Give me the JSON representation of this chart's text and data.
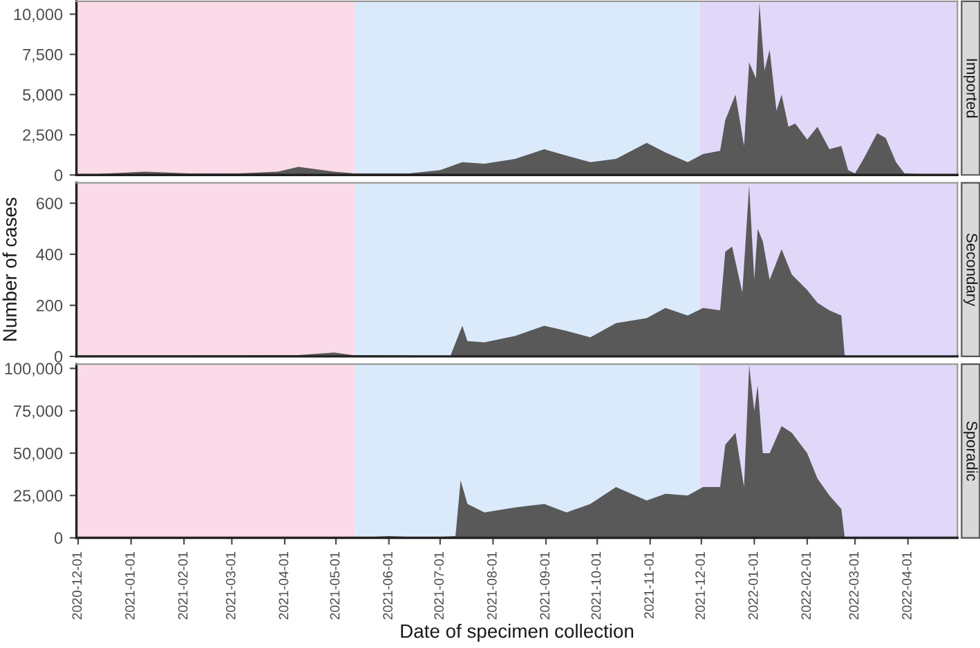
{
  "chart_data": [
    {
      "type": "area",
      "title": "Imported",
      "xlim": [
        "2020-11-30",
        "2022-04-30"
      ],
      "ylim": [
        0,
        10800
      ],
      "yticks": [
        0,
        {
          "value": 2500,
          "label": "2,500"
        },
        {
          "value": 5000,
          "label": "5,000"
        },
        {
          "value": 7500,
          "label": "7,500"
        },
        {
          "value": 10000,
          "label": "10,000"
        }
      ],
      "xticks": [
        "2020-12-01",
        "2021-01-01",
        "2021-02-01",
        "2021-03-01",
        "2021-04-01",
        "2021-05-01",
        "2021-06-01",
        "2021-07-01",
        "2021-08-01",
        "2021-09-01",
        "2021-10-01",
        "2021-11-01",
        "2021-12-01",
        "2022-01-01",
        "2022-02-01",
        "2022-03-01",
        "2022-04-01"
      ],
      "tick_labels": "y",
      "bands": [
        {
          "axis": "x",
          "from": "2020-11-30",
          "to": "2021-05-12",
          "color": "#fcdbe8"
        },
        {
          "axis": "x",
          "from": "2021-05-12",
          "to": "2021-11-30",
          "color": "#dbeafb"
        },
        {
          "axis": "x",
          "from": "2021-11-30",
          "to": "2022-04-30",
          "color": "#e1d8f9"
        }
      ],
      "series": [
        {
          "color": "#595959",
          "x": [
            "2020-12-01",
            "2021-01-09",
            "2021-02-04",
            "2021-03-05",
            "2021-03-28",
            "2021-04-09",
            "2021-04-30",
            "2021-05-11",
            "2021-06-13",
            "2021-07-01",
            "2021-07-14",
            "2021-07-27",
            "2021-08-14",
            "2021-08-31",
            "2021-09-13",
            "2021-09-27",
            "2021-10-12",
            "2021-10-30",
            "2021-11-10",
            "2021-11-23",
            "2021-12-02",
            "2021-12-12",
            "2021-12-15",
            "2021-12-21",
            "2021-12-26",
            "2021-12-29",
            "2022-01-02",
            "2022-01-04",
            "2022-01-07",
            "2022-01-10",
            "2022-01-14",
            "2022-01-17",
            "2022-01-21",
            "2022-01-25",
            "2022-02-01",
            "2022-02-07",
            "2022-02-14",
            "2022-02-21",
            "2022-02-25",
            "2022-03-01",
            "2022-03-06",
            "2022-03-14",
            "2022-03-19",
            "2022-03-25",
            "2022-03-30",
            "2022-04-21"
          ],
          "values": [
            0,
            200,
            100,
            100,
            200,
            500,
            200,
            100,
            100,
            300,
            800,
            700,
            1000,
            1600,
            1200,
            800,
            1000,
            2000,
            1400,
            800,
            1300,
            1500,
            3400,
            5000,
            1800,
            7000,
            6000,
            10700,
            6500,
            7800,
            4000,
            5000,
            3000,
            3200,
            2200,
            3000,
            1600,
            1800,
            300,
            100,
            1000,
            2600,
            2300,
            800,
            100,
            0
          ]
        }
      ]
    },
    {
      "type": "area",
      "title": "Secondary",
      "ylabel": "Number of cases",
      "xlim": [
        "2020-11-30",
        "2022-04-30"
      ],
      "ylim": [
        0,
        680
      ],
      "yticks": [
        0,
        200,
        400,
        600
      ],
      "xticks": [
        "2020-12-01",
        "2021-01-01",
        "2021-02-01",
        "2021-03-01",
        "2021-04-01",
        "2021-05-01",
        "2021-06-01",
        "2021-07-01",
        "2021-08-01",
        "2021-09-01",
        "2021-10-01",
        "2021-11-01",
        "2021-12-01",
        "2022-01-01",
        "2022-02-01",
        "2022-03-01",
        "2022-04-01"
      ],
      "tick_labels": "y",
      "bands": [
        {
          "axis": "x",
          "from": "2020-11-30",
          "to": "2021-05-12",
          "color": "#fcdbe8"
        },
        {
          "axis": "x",
          "from": "2021-05-12",
          "to": "2021-11-30",
          "color": "#dbeafb"
        },
        {
          "axis": "x",
          "from": "2021-11-30",
          "to": "2022-04-30",
          "color": "#e1d8f9"
        }
      ],
      "series": [
        {
          "color": "#595959",
          "x": [
            "2020-12-01",
            "2021-04-09",
            "2021-04-30",
            "2021-05-11",
            "2021-06-13",
            "2021-07-01",
            "2021-07-07",
            "2021-07-14",
            "2021-07-17",
            "2021-07-27",
            "2021-08-14",
            "2021-08-31",
            "2021-09-13",
            "2021-09-27",
            "2021-10-12",
            "2021-10-30",
            "2021-11-10",
            "2021-11-23",
            "2021-12-02",
            "2021-12-12",
            "2021-12-15",
            "2021-12-19",
            "2021-12-25",
            "2021-12-29",
            "2022-01-01",
            "2022-01-03",
            "2022-01-06",
            "2022-01-10",
            "2022-01-17",
            "2022-01-23",
            "2022-02-01",
            "2022-02-07",
            "2022-02-14",
            "2022-02-21",
            "2022-02-23"
          ],
          "values": [
            3,
            5,
            15,
            5,
            3,
            2,
            2,
            120,
            60,
            55,
            80,
            120,
            100,
            75,
            130,
            150,
            190,
            160,
            190,
            180,
            410,
            430,
            250,
            670,
            300,
            500,
            450,
            300,
            420,
            320,
            260,
            210,
            180,
            160,
            0
          ]
        }
      ]
    },
    {
      "type": "area",
      "title": "Sporadic",
      "xlabel": "Date of specimen collection",
      "xlim": [
        "2020-11-30",
        "2022-04-30"
      ],
      "ylim": [
        0,
        102500
      ],
      "yticks": [
        0,
        {
          "value": 25000,
          "label": "25,000"
        },
        {
          "value": 50000,
          "label": "50,000"
        },
        {
          "value": 75000,
          "label": "75,000"
        },
        {
          "value": 100000,
          "label": "100,000"
        }
      ],
      "xticks": [
        "2020-12-01",
        "2021-01-01",
        "2021-02-01",
        "2021-03-01",
        "2021-04-01",
        "2021-05-01",
        "2021-06-01",
        "2021-07-01",
        "2021-08-01",
        "2021-09-01",
        "2021-10-01",
        "2021-11-01",
        "2021-12-01",
        "2022-01-01",
        "2022-02-01",
        "2022-03-01",
        "2022-04-01"
      ],
      "bands": [
        {
          "axis": "x",
          "from": "2020-11-30",
          "to": "2021-05-12",
          "color": "#fcdbe8"
        },
        {
          "axis": "x",
          "from": "2021-05-12",
          "to": "2021-11-30",
          "color": "#dbeafb"
        },
        {
          "axis": "x",
          "from": "2021-11-30",
          "to": "2022-04-30",
          "color": "#e1d8f9"
        }
      ],
      "series": [
        {
          "color": "#595959",
          "x": [
            "2020-12-01",
            "2021-05-11",
            "2021-06-01",
            "2021-06-13",
            "2021-07-01",
            "2021-07-10",
            "2021-07-13",
            "2021-07-17",
            "2021-07-27",
            "2021-08-14",
            "2021-08-31",
            "2021-09-13",
            "2021-09-27",
            "2021-10-12",
            "2021-10-30",
            "2021-11-10",
            "2021-11-23",
            "2021-12-02",
            "2021-12-12",
            "2021-12-15",
            "2021-12-21",
            "2021-12-26",
            "2021-12-29",
            "2022-01-01",
            "2022-01-03",
            "2022-01-06",
            "2022-01-10",
            "2022-01-17",
            "2022-01-23",
            "2022-02-01",
            "2022-02-07",
            "2022-02-14",
            "2022-02-21",
            "2022-02-23"
          ],
          "values": [
            0,
            0,
            1000,
            500,
            500,
            1000,
            34000,
            20000,
            15000,
            18000,
            20000,
            15000,
            20000,
            30000,
            22000,
            26000,
            25000,
            30000,
            30000,
            55000,
            62000,
            30000,
            102000,
            75000,
            90000,
            50000,
            50000,
            66000,
            62000,
            50000,
            35000,
            25000,
            17000,
            0
          ]
        }
      ]
    }
  ]
}
